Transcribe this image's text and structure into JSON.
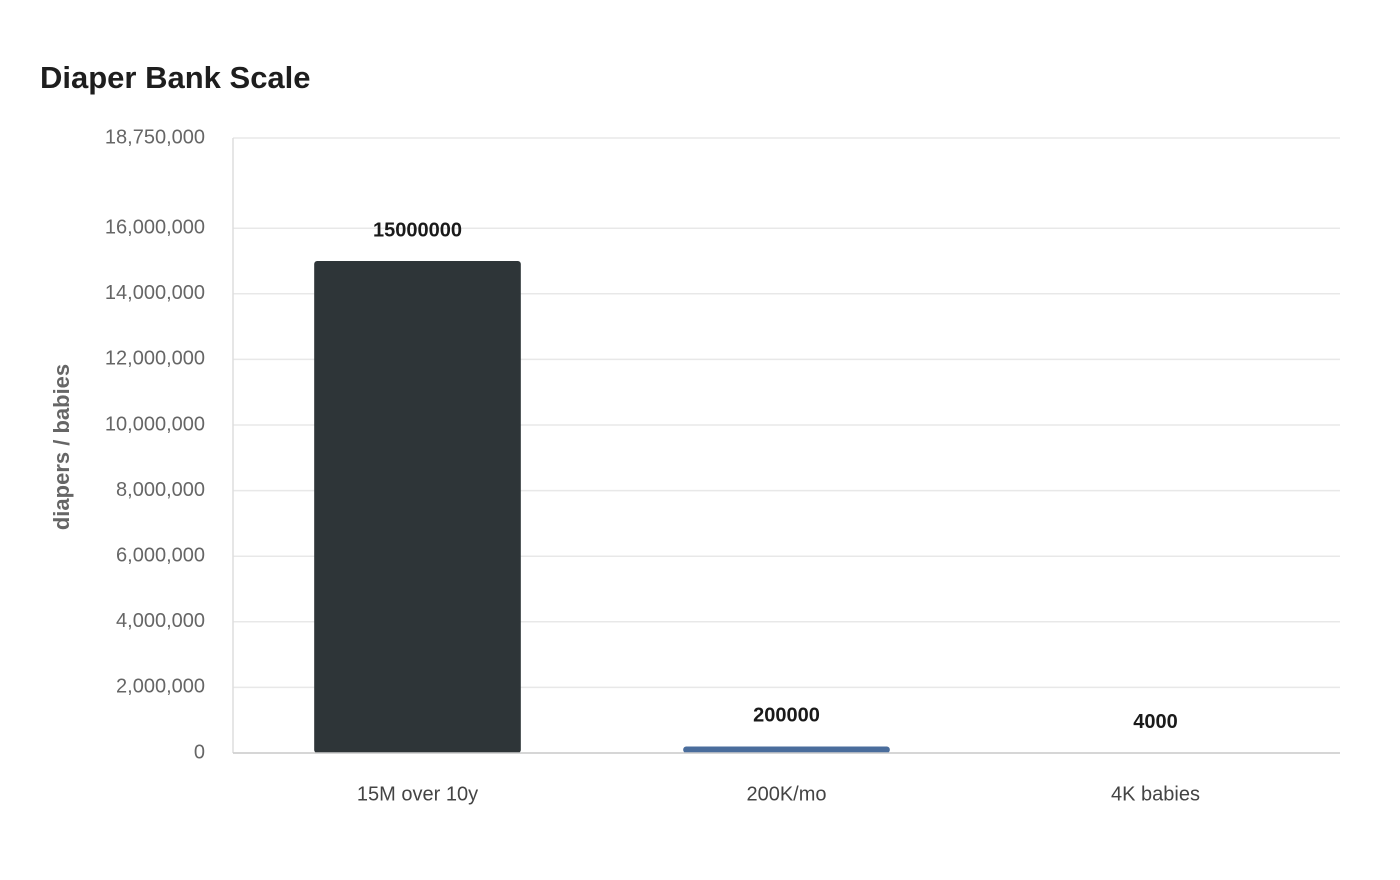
{
  "chart_data": {
    "type": "bar",
    "title": "Diaper Bank Scale",
    "y_label": "diapers / babies",
    "categories": [
      "15M over 10y",
      "200K/mo",
      "4K babies"
    ],
    "values": [
      15000000,
      200000,
      4000
    ],
    "colors": [
      "#2e3538",
      "#4a6d9c",
      "#8aaed4"
    ],
    "ylim": [
      0,
      18750000
    ],
    "yticks": [
      0,
      {
        "value": 2000000,
        "label": "2,000,000"
      },
      {
        "value": 4000000,
        "label": "4,000,000"
      },
      {
        "value": 6000000,
        "label": "6,000,000"
      },
      {
        "value": 8000000,
        "label": "8,000,000"
      },
      {
        "value": 10000000,
        "label": "10,000,000"
      },
      {
        "value": 12000000,
        "label": "12,000,000"
      },
      {
        "value": 14000000,
        "label": "14,000,000"
      },
      {
        "value": 16000000,
        "label": "16,000,000"
      },
      {
        "value": 18750000,
        "label": "18,750,000"
      }
    ],
    "grid": true
  }
}
